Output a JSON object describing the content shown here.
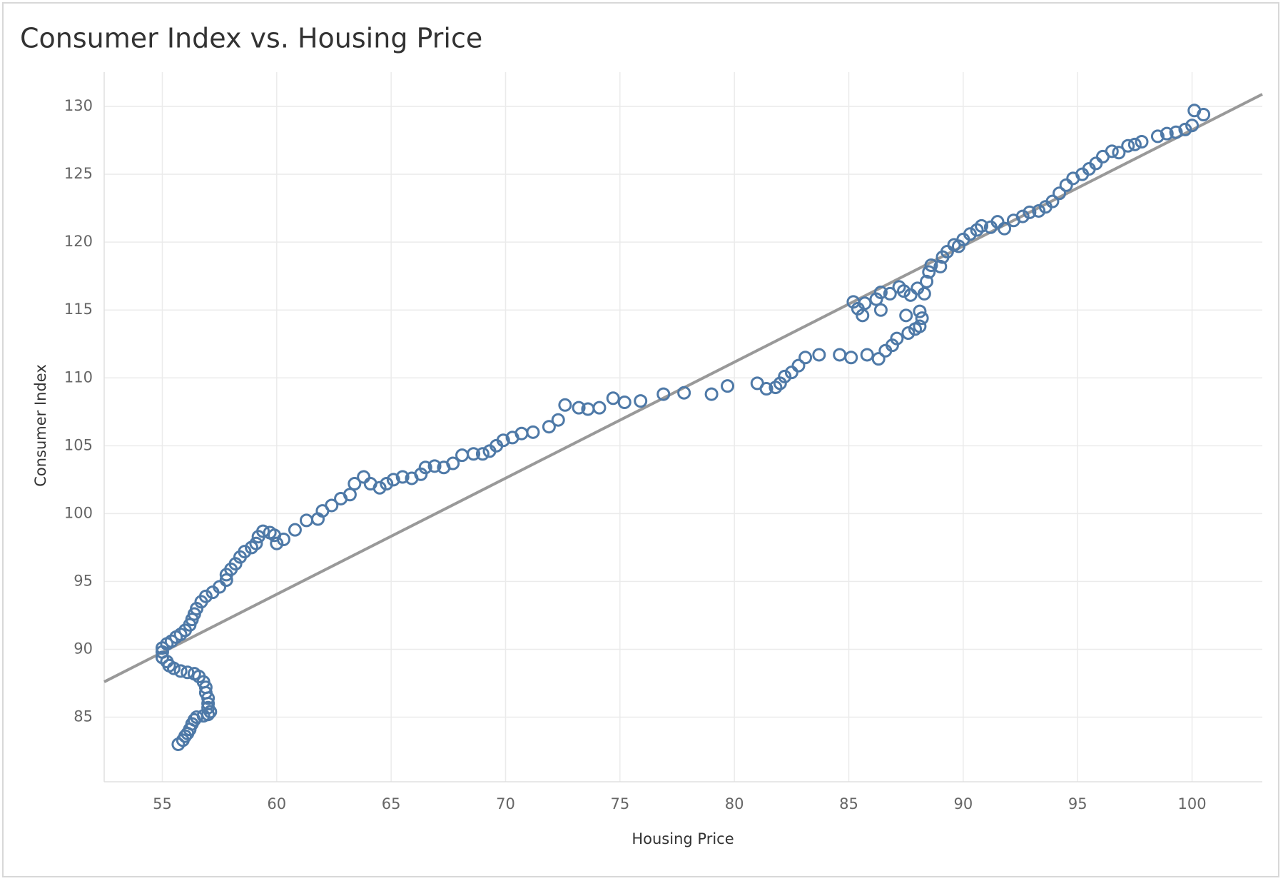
{
  "chart_data": {
    "type": "scatter",
    "title": "Consumer Index vs. Housing Price",
    "x_label": "Housing Price",
    "y_label": "Consumer Index",
    "xlim": [
      52.46,
      103.07
    ],
    "ylim": [
      80.24,
      132.53
    ],
    "xticks": [
      55,
      60,
      65,
      70,
      75,
      80,
      85,
      90,
      95,
      100
    ],
    "yticks": [
      85,
      90,
      95,
      100,
      105,
      110,
      115,
      120,
      125,
      130
    ],
    "grid": true,
    "color": "#4e79a7",
    "trend": {
      "x": [
        52.46,
        103.07
      ],
      "y": [
        87.6,
        130.9
      ],
      "color": "#999999"
    },
    "x": [
      55.7,
      55.9,
      56.0,
      56.1,
      56.2,
      56.3,
      56.4,
      56.5,
      56.8,
      57.0,
      57.1,
      57.0,
      57.0,
      57.0,
      56.9,
      56.9,
      56.8,
      56.6,
      56.4,
      56.1,
      55.8,
      55.5,
      55.3,
      55.2,
      55.0,
      55.0,
      55.0,
      55.2,
      55.4,
      55.6,
      55.8,
      56.0,
      56.2,
      56.3,
      56.4,
      56.5,
      56.7,
      56.9,
      57.2,
      57.5,
      57.8,
      57.8,
      58.0,
      58.2,
      58.4,
      58.6,
      58.9,
      59.1,
      59.2,
      59.4,
      59.7,
      59.9,
      60.0,
      60.3,
      60.8,
      61.3,
      61.8,
      62.0,
      62.4,
      62.8,
      63.2,
      63.4,
      63.8,
      64.1,
      64.5,
      64.8,
      65.1,
      65.5,
      65.9,
      66.3,
      66.5,
      66.9,
      67.3,
      67.7,
      68.1,
      68.6,
      69.0,
      69.3,
      69.6,
      69.9,
      70.3,
      70.7,
      71.2,
      71.9,
      72.3,
      72.6,
      73.2,
      73.6,
      74.1,
      74.7,
      75.2,
      75.9,
      76.9,
      77.8,
      79.0,
      79.7,
      81.0,
      81.4,
      81.8,
      82.0,
      82.2,
      82.5,
      82.8,
      83.1,
      83.7,
      84.6,
      85.1,
      85.8,
      86.3,
      86.6,
      86.9,
      87.1,
      87.6,
      87.9,
      88.1,
      88.2,
      88.1,
      87.5,
      86.4,
      85.6,
      85.4,
      85.2,
      85.7,
      86.2,
      86.4,
      86.8,
      87.2,
      87.4,
      87.7,
      88.0,
      88.3,
      88.4,
      88.5,
      88.6,
      89.0,
      89.1,
      89.3,
      89.6,
      89.8,
      90.0,
      90.3,
      90.6,
      90.8,
      91.2,
      91.5,
      91.8,
      92.2,
      92.6,
      92.9,
      93.3,
      93.6,
      93.9,
      94.2,
      94.5,
      94.8,
      95.2,
      95.5,
      95.8,
      96.1,
      96.5,
      96.8,
      97.2,
      97.5,
      97.8,
      98.5,
      98.9,
      99.3,
      99.7,
      100.0,
      100.1,
      100.5
    ],
    "y": [
      83.0,
      83.3,
      83.6,
      83.8,
      84.1,
      84.5,
      84.8,
      85.0,
      85.1,
      85.2,
      85.4,
      85.7,
      86.0,
      86.4,
      86.8,
      87.2,
      87.6,
      88.0,
      88.2,
      88.3,
      88.4,
      88.6,
      88.8,
      89.1,
      89.4,
      89.8,
      90.1,
      90.4,
      90.6,
      90.9,
      91.1,
      91.4,
      91.8,
      92.2,
      92.6,
      93.0,
      93.5,
      93.9,
      94.2,
      94.6,
      95.1,
      95.5,
      95.9,
      96.3,
      96.8,
      97.2,
      97.5,
      97.8,
      98.3,
      98.7,
      98.6,
      98.4,
      97.8,
      98.1,
      98.8,
      99.5,
      99.6,
      100.2,
      100.6,
      101.1,
      101.4,
      102.2,
      102.7,
      102.2,
      101.9,
      102.2,
      102.5,
      102.7,
      102.6,
      102.9,
      103.4,
      103.5,
      103.4,
      103.7,
      104.3,
      104.4,
      104.4,
      104.6,
      105.0,
      105.4,
      105.6,
      105.9,
      106.0,
      106.4,
      106.9,
      108.0,
      107.8,
      107.7,
      107.8,
      108.5,
      108.2,
      108.3,
      108.8,
      108.9,
      108.8,
      109.4,
      109.6,
      109.2,
      109.3,
      109.6,
      110.1,
      110.4,
      110.9,
      111.5,
      111.7,
      111.7,
      111.5,
      111.7,
      111.4,
      112.0,
      112.4,
      112.9,
      113.3,
      113.6,
      113.8,
      114.4,
      114.9,
      114.6,
      115.0,
      114.6,
      115.1,
      115.6,
      115.5,
      115.8,
      116.3,
      116.2,
      116.7,
      116.4,
      116.1,
      116.6,
      116.2,
      117.1,
      117.8,
      118.3,
      118.2,
      118.9,
      119.3,
      119.8,
      119.7,
      120.2,
      120.6,
      120.9,
      121.2,
      121.1,
      121.5,
      121.0,
      121.6,
      121.9,
      122.2,
      122.3,
      122.6,
      123.0,
      123.6,
      124.2,
      124.7,
      125.0,
      125.4,
      125.8,
      126.3,
      126.7,
      126.6,
      127.1,
      127.2,
      127.4,
      127.8,
      128.0,
      128.1,
      128.3,
      128.6,
      129.7,
      129.4
    ]
  }
}
